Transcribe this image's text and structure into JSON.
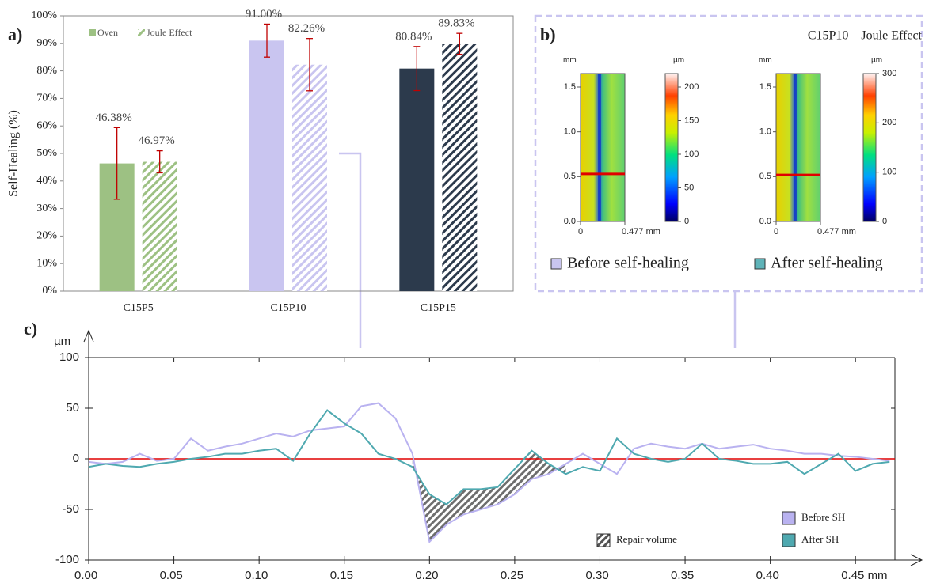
{
  "chart_data": [
    {
      "type": "bar",
      "panel_label": "a)",
      "y_label": "Self-Healing (%)",
      "categories": [
        "C15P5",
        "C15P10",
        "C15P15"
      ],
      "ylim": [
        0,
        100
      ],
      "yticks": [
        {
          "value": 0,
          "label": "0%"
        },
        {
          "value": 10,
          "label": "10%"
        },
        {
          "value": 20,
          "label": "20%"
        },
        {
          "value": 30,
          "label": "30%"
        },
        {
          "value": 40,
          "label": "40%"
        },
        {
          "value": 50,
          "label": "50%"
        },
        {
          "value": 60,
          "label": "60%"
        },
        {
          "value": 70,
          "label": "70%"
        },
        {
          "value": 80,
          "label": "80%"
        },
        {
          "value": 90,
          "label": "90%"
        },
        {
          "value": 100,
          "label": "100%"
        }
      ],
      "error_color": "#c00000",
      "series": [
        {
          "name": "Oven",
          "hatch": false,
          "colors": [
            "#9dc183",
            "#c9c5f0",
            "#2c3a4c"
          ],
          "values": [
            46.38,
            91.0,
            80.84
          ],
          "value_labels": [
            "46.38%",
            "91.00%",
            "80.84%"
          ],
          "errors": [
            13,
            6,
            8
          ]
        },
        {
          "name": "Joule Effect",
          "hatch": true,
          "colors": [
            "#9dc183",
            "#c9c5f0",
            "#2c3a4c"
          ],
          "values": [
            46.97,
            82.26,
            89.83
          ],
          "value_labels": [
            "46.97%",
            "82.26%",
            "89.83%"
          ],
          "errors": [
            4,
            9.5,
            3.8
          ]
        }
      ]
    },
    {
      "type": "image",
      "panel_label": "b)",
      "title": "C15P10 – Joule Effect",
      "line_color": "#e00000",
      "images": [
        {
          "y_unit": "mm",
          "ylim": [
            0,
            1.65
          ],
          "yticks": [
            {
              "value": 0,
              "label": "0.0"
            },
            0.5,
            {
              "value": 1,
              "label": "1.0"
            },
            1.5
          ],
          "xlim": [
            0,
            0.477
          ],
          "xticks": [
            0,
            {
              "value": 0.477,
              "label": "0.477 mm"
            }
          ],
          "line_y": 0.53,
          "colorbar": {
            "unit": "µm",
            "lim": [
              0,
              220
            ],
            "ticks": [
              0,
              50,
              100,
              150,
              200
            ]
          }
        },
        {
          "y_unit": "mm",
          "ylim": [
            0,
            1.65
          ],
          "yticks": [
            {
              "value": 0,
              "label": "0.0"
            },
            0.5,
            {
              "value": 1,
              "label": "1.0"
            },
            1.5
          ],
          "xlim": [
            0,
            0.477
          ],
          "xticks": [
            0,
            {
              "value": 0.477,
              "label": "0.477 mm"
            }
          ],
          "line_y": 0.52,
          "colorbar": {
            "unit": "µm",
            "lim": [
              0,
              300
            ],
            "ticks": [
              0,
              100,
              200,
              300
            ]
          }
        }
      ],
      "legend": [
        {
          "name": "Before self-healing",
          "color": "#c9c5f0"
        },
        {
          "name": "After self-healing",
          "color": "#5fb3b8"
        }
      ]
    },
    {
      "type": "line",
      "panel_label": "c)",
      "y_unit": "µm",
      "xlim": [
        0,
        0.475
      ],
      "ylim": [
        -100,
        100
      ],
      "xticks": [
        {
          "value": 0,
          "label": "0.00"
        },
        {
          "value": 0.05,
          "label": "0.05"
        },
        {
          "value": 0.1,
          "label": "0.10"
        },
        {
          "value": 0.15,
          "label": "0.15"
        },
        {
          "value": 0.2,
          "label": "0.20"
        },
        {
          "value": 0.25,
          "label": "0.25"
        },
        {
          "value": 0.3,
          "label": "0.30"
        },
        {
          "value": 0.35,
          "label": "0.35"
        },
        {
          "value": 0.4,
          "label": "0.40"
        },
        {
          "value": 0.45,
          "label": "0.45 mm"
        }
      ],
      "yticks": [
        -100,
        -50,
        0,
        50,
        100
      ],
      "zero_line_color": "#e00000",
      "legend": "lower right",
      "x": [
        0,
        0.01,
        0.02,
        0.03,
        0.04,
        0.05,
        0.06,
        0.07,
        0.08,
        0.09,
        0.1,
        0.11,
        0.12,
        0.13,
        0.14,
        0.15,
        0.16,
        0.17,
        0.18,
        0.19,
        0.2,
        0.21,
        0.22,
        0.23,
        0.24,
        0.25,
        0.26,
        0.27,
        0.28,
        0.29,
        0.3,
        0.31,
        0.32,
        0.33,
        0.34,
        0.35,
        0.36,
        0.37,
        0.38,
        0.39,
        0.4,
        0.41,
        0.42,
        0.43,
        0.44,
        0.45,
        0.46,
        0.47
      ],
      "series": [
        {
          "name": "Before SH",
          "color": "#b9b2f0",
          "values": [
            -3,
            -5,
            -3,
            5,
            -2,
            0,
            20,
            8,
            12,
            15,
            20,
            25,
            22,
            28,
            30,
            32,
            52,
            55,
            40,
            5,
            -82,
            -65,
            -55,
            -50,
            -45,
            -35,
            -20,
            -15,
            -5,
            5,
            -5,
            -15,
            10,
            15,
            12,
            10,
            15,
            10,
            12,
            14,
            10,
            8,
            5,
            5,
            3,
            2,
            0,
            -2
          ]
        },
        {
          "name": "After SH",
          "color": "#4fa9b0",
          "values": [
            -8,
            -5,
            -7,
            -8,
            -5,
            -3,
            0,
            2,
            5,
            5,
            8,
            10,
            -2,
            25,
            48,
            35,
            25,
            5,
            0,
            -8,
            -35,
            -45,
            -30,
            -30,
            -28,
            -10,
            8,
            -5,
            -15,
            -8,
            -12,
            20,
            5,
            0,
            -3,
            0,
            15,
            0,
            -2,
            -5,
            -5,
            -3,
            -15,
            -5,
            5,
            -12,
            -5,
            -3
          ]
        }
      ],
      "repair": {
        "name": "Repair volume",
        "xlim": [
          0.19,
          0.28
        ]
      }
    }
  ]
}
